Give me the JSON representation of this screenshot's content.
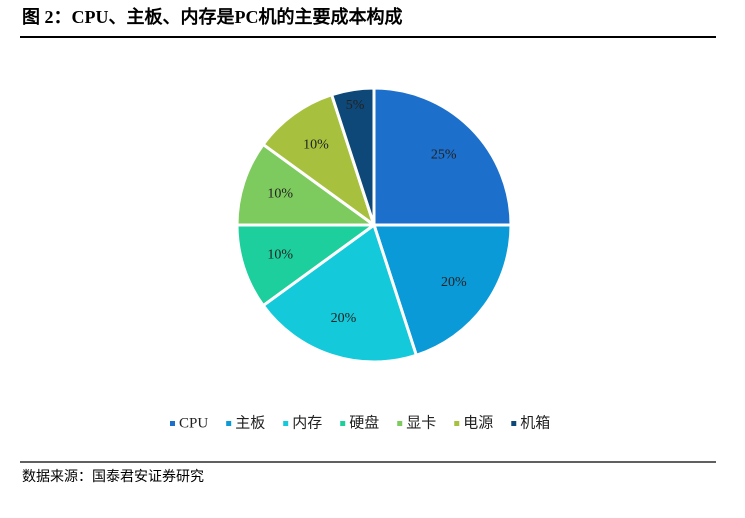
{
  "chart_data": {
    "type": "pie",
    "title": "图 2：CPU、主板、内存是PC机的主要成本构成",
    "source": "数据来源：国泰君安证券研究",
    "categories": [
      "CPU",
      "主板",
      "内存",
      "硬盘",
      "显卡",
      "电源",
      "机箱"
    ],
    "values": [
      25,
      20,
      20,
      10,
      10,
      10,
      5
    ],
    "value_labels": [
      "25%",
      "20%",
      "20%",
      "10%",
      "10%",
      "10%",
      "5%"
    ],
    "colors": [
      "#1c6fcb",
      "#0a9ad8",
      "#13c9da",
      "#1ccf9c",
      "#7dca5e",
      "#a7c13f",
      "#0e4878"
    ],
    "legend": "bottom"
  }
}
